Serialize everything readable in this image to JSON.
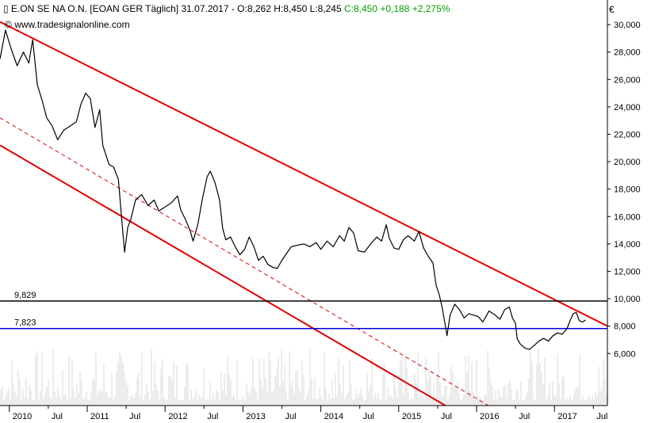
{
  "header": {
    "instrument": "E.ON SE NA O.N. [EOAN GER  Täglich] 31.07.2017 - O:8,262 H:8,450 L:8,245",
    "change": "C:8,450 +0,188 +2,275%",
    "source": "www.tradesignalonline.com",
    "currency": "€"
  },
  "colors": {
    "price": "#000000",
    "channel": "#e00000",
    "level_high": "#000000",
    "level_low": "#0000e0",
    "volume": "#d8d8d8",
    "change_positive": "#00a000"
  },
  "chart_data": {
    "type": "line",
    "x_ticks": [
      {
        "label": "2010",
        "t": 2010.0,
        "major": true
      },
      {
        "label": "Jul",
        "t": 2010.5,
        "major": false
      },
      {
        "label": "2011",
        "t": 2011.0,
        "major": true
      },
      {
        "label": "Jul",
        "t": 2011.5,
        "major": false
      },
      {
        "label": "2012",
        "t": 2012.0,
        "major": true
      },
      {
        "label": "Jul",
        "t": 2012.5,
        "major": false
      },
      {
        "label": "2013",
        "t": 2013.0,
        "major": true
      },
      {
        "label": "Jul",
        "t": 2013.5,
        "major": false
      },
      {
        "label": "2014",
        "t": 2014.0,
        "major": true
      },
      {
        "label": "Jul",
        "t": 2014.5,
        "major": false
      },
      {
        "label": "2015",
        "t": 2015.0,
        "major": true
      },
      {
        "label": "Jul",
        "t": 2015.5,
        "major": false
      },
      {
        "label": "2016",
        "t": 2016.0,
        "major": true
      },
      {
        "label": "Jul",
        "t": 2016.5,
        "major": false
      },
      {
        "label": "2017",
        "t": 2017.0,
        "major": true
      },
      {
        "label": "Jul",
        "t": 2017.5,
        "major": false
      }
    ],
    "y_ticks": [
      "30,000",
      "28,000",
      "26,000",
      "24,000",
      "22,000",
      "20,000",
      "18,000",
      "16,000",
      "14,000",
      "12,000",
      "10,000",
      "8,000",
      "6,000"
    ],
    "y_tick_values": [
      30,
      28,
      26,
      24,
      22,
      20,
      18,
      16,
      14,
      12,
      10,
      8,
      6
    ],
    "ylim": [
      2.2,
      31.8
    ],
    "xlim": [
      2009.88,
      2017.68
    ],
    "series": [
      {
        "points": [
          [
            2009.88,
            27.5
          ],
          [
            2009.95,
            29.6
          ],
          [
            2010.02,
            28.3
          ],
          [
            2010.1,
            27.0
          ],
          [
            2010.18,
            28.0
          ],
          [
            2010.25,
            27.2
          ],
          [
            2010.3,
            28.9
          ],
          [
            2010.36,
            25.6
          ],
          [
            2010.42,
            24.5
          ],
          [
            2010.48,
            23.2
          ],
          [
            2010.55,
            22.6
          ],
          [
            2010.62,
            21.6
          ],
          [
            2010.7,
            22.3
          ],
          [
            2010.78,
            22.6
          ],
          [
            2010.86,
            22.9
          ],
          [
            2010.92,
            24.2
          ],
          [
            2010.98,
            25.0
          ],
          [
            2011.04,
            24.6
          ],
          [
            2011.1,
            22.5
          ],
          [
            2011.16,
            23.8
          ],
          [
            2011.2,
            21.2
          ],
          [
            2011.28,
            19.8
          ],
          [
            2011.34,
            19.6
          ],
          [
            2011.4,
            18.7
          ],
          [
            2011.44,
            16.0
          ],
          [
            2011.48,
            13.4
          ],
          [
            2011.52,
            15.2
          ],
          [
            2011.56,
            15.8
          ],
          [
            2011.62,
            17.2
          ],
          [
            2011.7,
            17.6
          ],
          [
            2011.78,
            16.8
          ],
          [
            2011.86,
            17.2
          ],
          [
            2011.92,
            16.4
          ],
          [
            2012.0,
            16.7
          ],
          [
            2012.08,
            17.0
          ],
          [
            2012.16,
            17.5
          ],
          [
            2012.2,
            16.5
          ],
          [
            2012.26,
            15.8
          ],
          [
            2012.32,
            15.0
          ],
          [
            2012.36,
            14.2
          ],
          [
            2012.42,
            15.4
          ],
          [
            2012.48,
            17.3
          ],
          [
            2012.54,
            18.9
          ],
          [
            2012.58,
            19.3
          ],
          [
            2012.64,
            18.5
          ],
          [
            2012.7,
            17.2
          ],
          [
            2012.74,
            15.1
          ],
          [
            2012.78,
            14.3
          ],
          [
            2012.84,
            14.5
          ],
          [
            2012.9,
            13.8
          ],
          [
            2012.96,
            13.2
          ],
          [
            2013.02,
            13.6
          ],
          [
            2013.08,
            14.5
          ],
          [
            2013.14,
            13.8
          ],
          [
            2013.2,
            12.8
          ],
          [
            2013.26,
            13.1
          ],
          [
            2013.32,
            12.5
          ],
          [
            2013.38,
            12.3
          ],
          [
            2013.44,
            12.2
          ],
          [
            2013.5,
            12.8
          ],
          [
            2013.56,
            13.3
          ],
          [
            2013.62,
            13.8
          ],
          [
            2013.7,
            13.9
          ],
          [
            2013.78,
            14.0
          ],
          [
            2013.86,
            13.8
          ],
          [
            2013.94,
            14.1
          ],
          [
            2014.0,
            13.6
          ],
          [
            2014.08,
            14.2
          ],
          [
            2014.16,
            13.8
          ],
          [
            2014.24,
            14.6
          ],
          [
            2014.3,
            14.2
          ],
          [
            2014.36,
            15.2
          ],
          [
            2014.42,
            14.8
          ],
          [
            2014.48,
            13.5
          ],
          [
            2014.56,
            13.4
          ],
          [
            2014.64,
            14.0
          ],
          [
            2014.72,
            14.5
          ],
          [
            2014.78,
            14.2
          ],
          [
            2014.84,
            15.4
          ],
          [
            2014.88,
            14.4
          ],
          [
            2014.94,
            13.7
          ],
          [
            2015.0,
            13.6
          ],
          [
            2015.06,
            14.3
          ],
          [
            2015.12,
            14.6
          ],
          [
            2015.2,
            14.2
          ],
          [
            2015.26,
            14.9
          ],
          [
            2015.32,
            13.7
          ],
          [
            2015.38,
            13.1
          ],
          [
            2015.44,
            12.6
          ],
          [
            2015.48,
            11.0
          ],
          [
            2015.52,
            10.3
          ],
          [
            2015.56,
            9.3
          ],
          [
            2015.6,
            8.0
          ],
          [
            2015.62,
            7.3
          ],
          [
            2015.66,
            8.8
          ],
          [
            2015.72,
            9.6
          ],
          [
            2015.78,
            9.2
          ],
          [
            2015.84,
            8.6
          ],
          [
            2015.9,
            8.9
          ],
          [
            2015.96,
            8.8
          ],
          [
            2016.02,
            8.7
          ],
          [
            2016.08,
            8.3
          ],
          [
            2016.16,
            9.1
          ],
          [
            2016.24,
            8.8
          ],
          [
            2016.3,
            8.5
          ],
          [
            2016.36,
            9.2
          ],
          [
            2016.42,
            9.4
          ],
          [
            2016.46,
            8.6
          ],
          [
            2016.5,
            8.2
          ],
          [
            2016.52,
            7.1
          ],
          [
            2016.56,
            6.7
          ],
          [
            2016.62,
            6.4
          ],
          [
            2016.68,
            6.3
          ],
          [
            2016.74,
            6.6
          ],
          [
            2016.8,
            6.9
          ],
          [
            2016.86,
            7.1
          ],
          [
            2016.92,
            6.9
          ],
          [
            2016.98,
            7.3
          ],
          [
            2017.04,
            7.5
          ],
          [
            2017.1,
            7.4
          ],
          [
            2017.16,
            7.8
          ],
          [
            2017.2,
            8.4
          ],
          [
            2017.24,
            8.9
          ],
          [
            2017.28,
            9.0
          ],
          [
            2017.32,
            8.4
          ],
          [
            2017.36,
            8.3
          ],
          [
            2017.4,
            8.45
          ]
        ]
      }
    ],
    "channel_lines": [
      {
        "style": "solid",
        "from": [
          2009.88,
          30.2
        ],
        "to": [
          2017.68,
          8.0
        ]
      },
      {
        "style": "dashed",
        "from": [
          2009.88,
          23.2
        ],
        "to": [
          2016.36,
          1.5
        ]
      },
      {
        "style": "solid",
        "from": [
          2009.88,
          21.2
        ],
        "to": [
          2015.81,
          1.5
        ]
      }
    ],
    "levels": [
      {
        "label": "9,829",
        "value": 9.829,
        "color": "#000000"
      },
      {
        "label": "7,823",
        "value": 7.823,
        "color": "#0000e0"
      }
    ],
    "volume_band": [
      2.6,
      6.4
    ]
  }
}
